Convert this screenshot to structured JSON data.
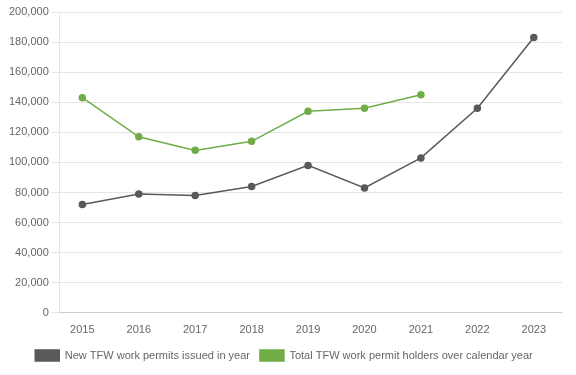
{
  "chart_data": {
    "type": "line",
    "x": [
      2015,
      2016,
      2017,
      2018,
      2019,
      2020,
      2021,
      2022,
      2023
    ],
    "series": [
      {
        "name": "New TFW work permits issued in year",
        "color": "#595959",
        "marker": "circle",
        "values": [
          72000,
          79000,
          78000,
          84000,
          98000,
          83000,
          103000,
          136000,
          183000
        ]
      },
      {
        "name": "Total TFW work permit holders over calendar year",
        "color": "#70ad47",
        "marker": "circle",
        "values": [
          143000,
          117000,
          108000,
          114000,
          134000,
          136000,
          145000,
          null,
          null
        ]
      }
    ],
    "xlim": [
      2014.6,
      2023.5
    ],
    "xticks": [
      2015,
      2016,
      2017,
      2018,
      2019,
      2020,
      2021,
      2022,
      2023
    ],
    "ylim": [
      0,
      200000
    ],
    "yticks": [
      0,
      {
        "value": 20000,
        "label": "20,000"
      },
      {
        "value": 40000,
        "label": "40,000"
      },
      {
        "value": 60000,
        "label": "60,000"
      },
      {
        "value": 80000,
        "label": "80,000"
      },
      {
        "value": 100000,
        "label": "100,000"
      },
      {
        "value": 120000,
        "label": "120,000"
      },
      {
        "value": 140000,
        "label": "140,000"
      },
      {
        "value": 160000,
        "label": "160,000"
      },
      {
        "value": 180000,
        "label": "180,000"
      },
      {
        "value": 200000,
        "label": "200,000"
      }
    ],
    "grid": "y",
    "legend": "bottom"
  }
}
